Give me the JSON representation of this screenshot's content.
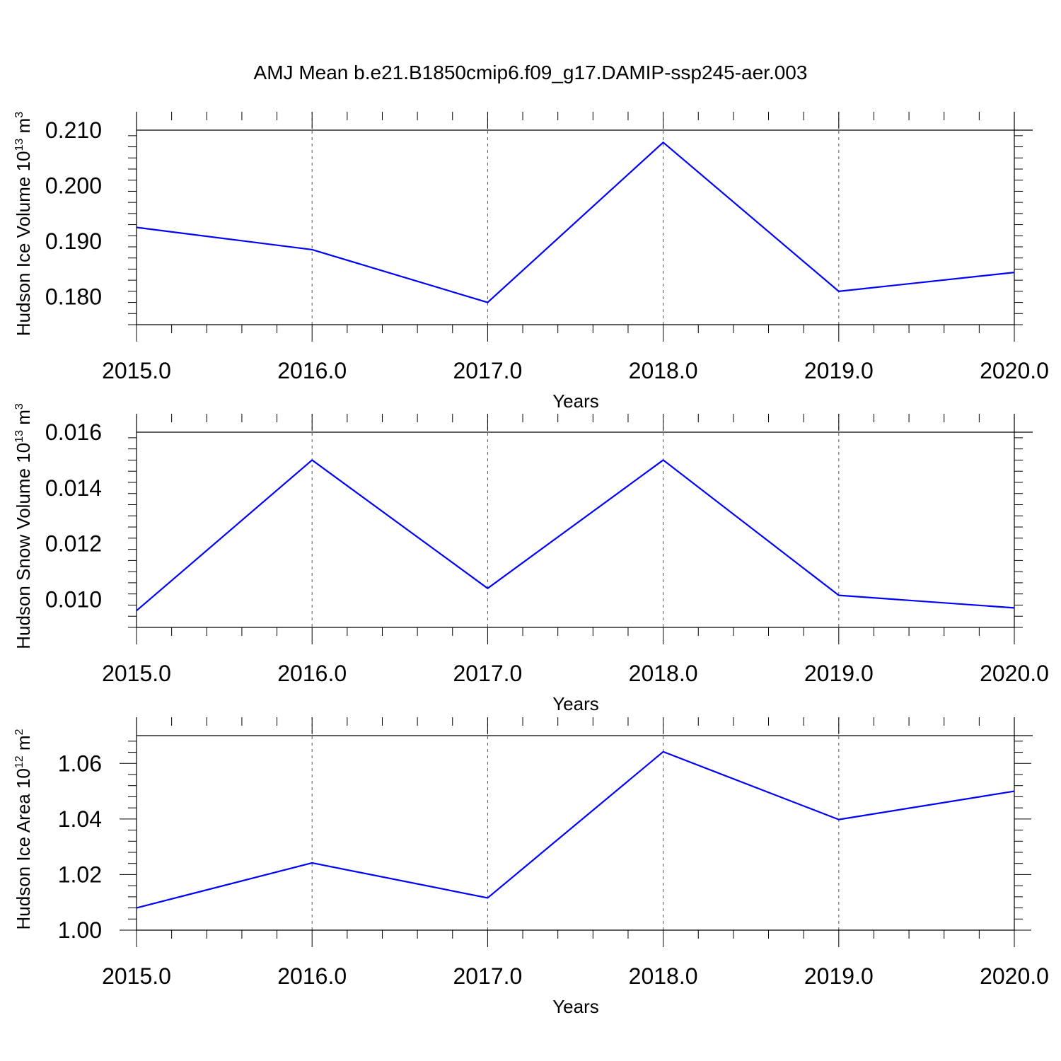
{
  "title": "AMJ Mean b.e21.B1850cmip6.f09_g17.DAMIP-ssp245-aer.003",
  "style": {
    "line_color": "#0000ff",
    "grid": "dashed vertical at major x ticks"
  },
  "chart_data": [
    {
      "type": "line",
      "xlabel": "Years",
      "ylabel": {
        "text": "Hudson Ice Volume 10",
        "exp": "13",
        "unit": " m",
        "unit_exp": "3"
      },
      "x": [
        2015,
        2016,
        2017,
        2018,
        2019,
        2020
      ],
      "xlim": [
        2015,
        2020
      ],
      "xticks": [
        "2015.0",
        "2016.0",
        "2017.0",
        "2018.0",
        "2019.0",
        "2020.0"
      ],
      "ylim": [
        0.175,
        0.21
      ],
      "yticks": [
        0.18,
        0.19,
        0.2,
        0.21
      ],
      "ytick_labels": [
        "0.180",
        "0.190",
        "0.200",
        "0.210"
      ],
      "series": [
        {
          "values": [
            0.1925,
            0.1885,
            0.179,
            0.2078,
            0.181,
            0.1844
          ]
        }
      ]
    },
    {
      "type": "line",
      "xlabel": "Years",
      "ylabel": {
        "text": "Hudson Snow Volume 10",
        "exp": "13",
        "unit": " m",
        "unit_exp": "3"
      },
      "x": [
        2015,
        2016,
        2017,
        2018,
        2019,
        2020
      ],
      "xlim": [
        2015,
        2020
      ],
      "xticks": [
        "2015.0",
        "2016.0",
        "2017.0",
        "2018.0",
        "2019.0",
        "2020.0"
      ],
      "ylim": [
        0.009,
        0.016
      ],
      "yticks": [
        0.01,
        0.012,
        0.014,
        0.016
      ],
      "ytick_labels": [
        "0.010",
        "0.012",
        "0.014",
        "0.016"
      ],
      "series": [
        {
          "values": [
            0.0096,
            0.015,
            0.0104,
            0.015,
            0.01015,
            0.0097
          ]
        }
      ]
    },
    {
      "type": "line",
      "xlabel": "Years",
      "ylabel": {
        "text": "Hudson Ice Area 10",
        "exp": "12",
        "unit": " m",
        "unit_exp": "2"
      },
      "x": [
        2015,
        2016,
        2017,
        2018,
        2019,
        2020
      ],
      "xlim": [
        2015,
        2020
      ],
      "xticks": [
        "2015.0",
        "2016.0",
        "2017.0",
        "2018.0",
        "2019.0",
        "2020.0"
      ],
      "ylim": [
        1.0,
        1.07
      ],
      "yticks": [
        1.0,
        1.02,
        1.04,
        1.06
      ],
      "ytick_labels": [
        "1.00",
        "1.02",
        "1.04",
        "1.06"
      ],
      "series": [
        {
          "values": [
            1.008,
            1.0242,
            1.0116,
            1.0642,
            1.0398,
            1.05
          ]
        }
      ]
    }
  ]
}
